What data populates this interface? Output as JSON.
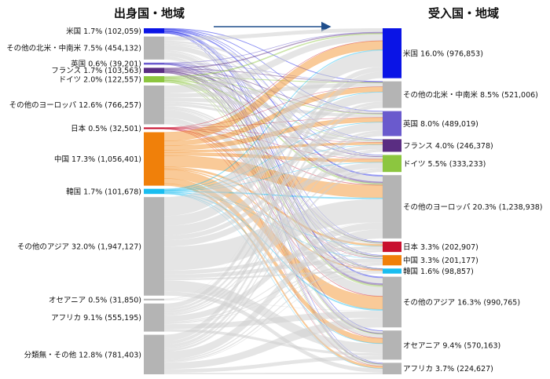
{
  "chart_data": {
    "type": "sankey",
    "header_left": "出身国・地域",
    "header_right": "受入国・地域",
    "sources": [
      {
        "name": "米国",
        "pct": "1.7%",
        "value": "102,059",
        "color": "#0a14e6"
      },
      {
        "name": "その他の北米・中南米",
        "pct": "7.5%",
        "value": "454,132",
        "color": "#b4b4b4"
      },
      {
        "name": "英国",
        "pct": "0.6%",
        "value": "39,201",
        "color": "#6a5acd"
      },
      {
        "name": "フランス",
        "pct": "1.7%",
        "value": "103,563",
        "color": "#5a2d82"
      },
      {
        "name": "ドイツ",
        "pct": "2.0%",
        "value": "122,557",
        "color": "#8cc63f"
      },
      {
        "name": "その他のヨーロッパ",
        "pct": "12.6%",
        "value": "766,257",
        "color": "#b4b4b4"
      },
      {
        "name": "日本",
        "pct": "0.5%",
        "value": "32,501",
        "color": "#c8102e"
      },
      {
        "name": "中国",
        "pct": "17.3%",
        "value": "1,056,401",
        "color": "#f0800a"
      },
      {
        "name": "韓国",
        "pct": "1.7%",
        "value": "101,678",
        "color": "#19bdf0"
      },
      {
        "name": "その他のアジア",
        "pct": "32.0%",
        "value": "1,947,127",
        "color": "#b4b4b4"
      },
      {
        "name": "オセアニア",
        "pct": "0.5%",
        "value": "31,850",
        "color": "#b4b4b4"
      },
      {
        "name": "アフリカ",
        "pct": "9.1%",
        "value": "555,195",
        "color": "#b4b4b4"
      },
      {
        "name": "分類無・その他",
        "pct": "12.8%",
        "value": "781,403",
        "color": "#b4b4b4"
      }
    ],
    "targets": [
      {
        "name": "米国",
        "pct": "16.0%",
        "value": "976,853",
        "color": "#0a14e6"
      },
      {
        "name": "その他の北米・中南米",
        "pct": "8.5%",
        "value": "521,006",
        "color": "#b4b4b4"
      },
      {
        "name": "英国",
        "pct": "8.0%",
        "value": "489,019",
        "color": "#6a5acd"
      },
      {
        "name": "フランス",
        "pct": "4.0%",
        "value": "246,378",
        "color": "#5a2d82"
      },
      {
        "name": "ドイツ",
        "pct": "5.5%",
        "value": "333,233",
        "color": "#8cc63f"
      },
      {
        "name": "その他のヨーロッパ",
        "pct": "20.3%",
        "value": "1,238,938",
        "color": "#b4b4b4"
      },
      {
        "name": "日本",
        "pct": "3.3%",
        "value": "202,907",
        "color": "#c8102e"
      },
      {
        "name": "中国",
        "pct": "3.3%",
        "value": "201,177",
        "color": "#f0800a"
      },
      {
        "name": "韓国",
        "pct": "1.6%",
        "value": "98,857",
        "color": "#19bdf0"
      },
      {
        "name": "その他のアジア",
        "pct": "16.3%",
        "value": "990,765",
        "color": "#b4b4b4"
      },
      {
        "name": "オセアニア",
        "pct": "9.4%",
        "value": "570,163",
        "color": "#b4b4b4"
      },
      {
        "name": "アフリカ",
        "pct": "3.7%",
        "value": "224,627",
        "color": "#b4b4b4"
      }
    ]
  }
}
